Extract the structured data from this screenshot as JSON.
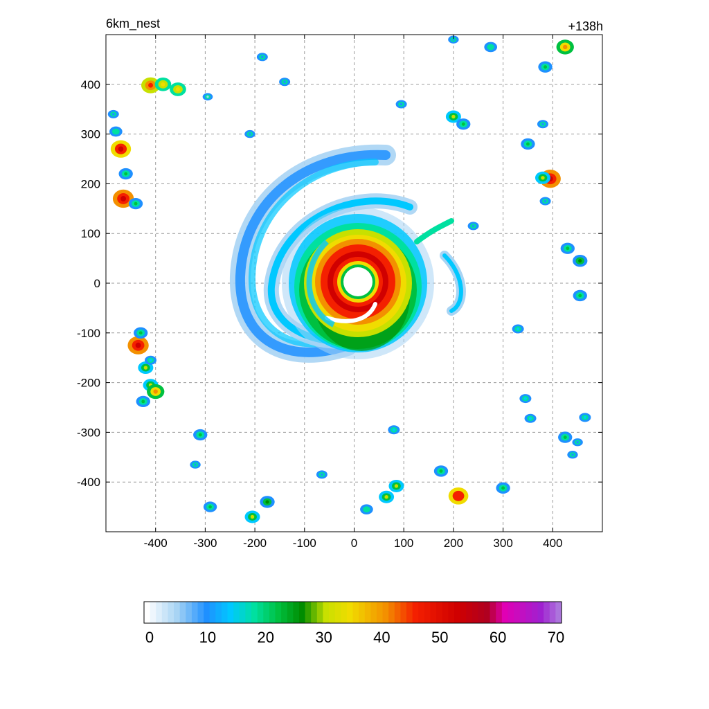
{
  "header": {
    "left_title": "6km_nest",
    "right_title": "+138h"
  },
  "chart_data": {
    "type": "heatmap",
    "title": "",
    "xlabel": "",
    "ylabel": "",
    "xlim": [
      -500,
      500
    ],
    "ylim": [
      -500,
      500
    ],
    "grid": true,
    "xticks": [
      -400,
      -300,
      -200,
      -100,
      0,
      100,
      200,
      300,
      400
    ],
    "yticks": [
      -400,
      -300,
      -200,
      -100,
      0,
      100,
      200,
      300,
      400
    ],
    "colorbar": {
      "min": 0,
      "max": 70,
      "ticks": [
        0,
        10,
        20,
        30,
        40,
        50,
        60,
        70
      ],
      "stops": [
        {
          "v": 0,
          "c": "#ffffff"
        },
        {
          "v": 5,
          "c": "#a8d4f4"
        },
        {
          "v": 10,
          "c": "#1e90ff"
        },
        {
          "v": 14,
          "c": "#00c8ff"
        },
        {
          "v": 18,
          "c": "#00e0a0"
        },
        {
          "v": 22,
          "c": "#00c040"
        },
        {
          "v": 26,
          "c": "#008c00"
        },
        {
          "v": 30,
          "c": "#c8e000"
        },
        {
          "v": 34,
          "c": "#f0dc00"
        },
        {
          "v": 40,
          "c": "#f39000"
        },
        {
          "v": 45,
          "c": "#f42000"
        },
        {
          "v": 52,
          "c": "#d00000"
        },
        {
          "v": 57,
          "c": "#b00020"
        },
        {
          "v": 60,
          "c": "#e000b4"
        },
        {
          "v": 66,
          "c": "#a020d0"
        },
        {
          "v": 70,
          "c": "#b090e0"
        }
      ]
    },
    "cells": [
      {
        "x": -470,
        "y": 270,
        "v": 52
      },
      {
        "x": -465,
        "y": 170,
        "v": 55
      },
      {
        "x": -440,
        "y": 160,
        "v": 25
      },
      {
        "x": -460,
        "y": 220,
        "v": 25
      },
      {
        "x": -410,
        "y": 398,
        "v": 45
      },
      {
        "x": -385,
        "y": 400,
        "v": 35
      },
      {
        "x": -355,
        "y": 390,
        "v": 35
      },
      {
        "x": -435,
        "y": -125,
        "v": 55
      },
      {
        "x": -430,
        "y": -100,
        "v": 25
      },
      {
        "x": -420,
        "y": -170,
        "v": 30
      },
      {
        "x": -410,
        "y": -155,
        "v": 15
      },
      {
        "x": -410,
        "y": -205,
        "v": 30
      },
      {
        "x": -400,
        "y": -218,
        "v": 40
      },
      {
        "x": -425,
        "y": -238,
        "v": 25
      },
      {
        "x": -310,
        "y": -305,
        "v": 25
      },
      {
        "x": -290,
        "y": -450,
        "v": 22
      },
      {
        "x": -205,
        "y": -470,
        "v": 30
      },
      {
        "x": -175,
        "y": -440,
        "v": 28
      },
      {
        "x": -65,
        "y": -385,
        "v": 12
      },
      {
        "x": 25,
        "y": -455,
        "v": 20
      },
      {
        "x": 65,
        "y": -430,
        "v": 30
      },
      {
        "x": 85,
        "y": -408,
        "v": 30
      },
      {
        "x": 80,
        "y": -295,
        "v": 15
      },
      {
        "x": 175,
        "y": -378,
        "v": 25
      },
      {
        "x": 210,
        "y": -428,
        "v": 50
      },
      {
        "x": 300,
        "y": -412,
        "v": 25
      },
      {
        "x": 395,
        "y": 210,
        "v": 55
      },
      {
        "x": 380,
        "y": 212,
        "v": 30
      },
      {
        "x": 350,
        "y": 280,
        "v": 25
      },
      {
        "x": 200,
        "y": 335,
        "v": 30
      },
      {
        "x": 220,
        "y": 320,
        "v": 25
      },
      {
        "x": 425,
        "y": 475,
        "v": 40
      },
      {
        "x": 275,
        "y": 475,
        "v": 20
      },
      {
        "x": 385,
        "y": 435,
        "v": 25
      },
      {
        "x": 430,
        "y": 70,
        "v": 25
      },
      {
        "x": 455,
        "y": 45,
        "v": 28
      },
      {
        "x": 455,
        "y": -25,
        "v": 25
      },
      {
        "x": 425,
        "y": -310,
        "v": 25
      },
      {
        "x": 465,
        "y": -270,
        "v": 15
      },
      {
        "x": 345,
        "y": -232,
        "v": 15
      },
      {
        "x": 355,
        "y": -272,
        "v": 15
      },
      {
        "x": 330,
        "y": -92,
        "v": 15
      },
      {
        "x": 240,
        "y": 115,
        "v": 12
      },
      {
        "x": 95,
        "y": 360,
        "v": 12
      },
      {
        "x": -140,
        "y": 405,
        "v": 12
      },
      {
        "x": -185,
        "y": 455,
        "v": 12
      },
      {
        "x": -295,
        "y": 375,
        "v": 8
      },
      {
        "x": -485,
        "y": 340,
        "v": 12
      },
      {
        "x": -480,
        "y": 305,
        "v": 20
      },
      {
        "x": -210,
        "y": 300,
        "v": 10
      },
      {
        "x": -320,
        "y": -365,
        "v": 10
      },
      {
        "x": 380,
        "y": 320,
        "v": 12
      },
      {
        "x": 385,
        "y": 165,
        "v": 12
      },
      {
        "x": 450,
        "y": -320,
        "v": 10
      },
      {
        "x": 440,
        "y": -345,
        "v": 10
      },
      {
        "x": 200,
        "y": 490,
        "v": 10
      }
    ]
  }
}
